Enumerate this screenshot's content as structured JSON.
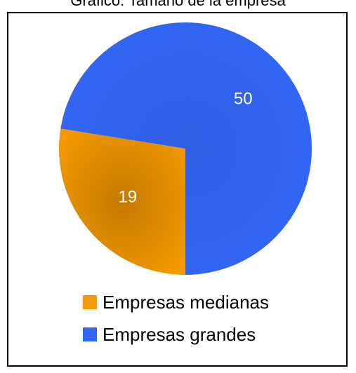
{
  "chart_data": {
    "type": "pie",
    "title": "Gráfico: Tamaño de la empresa",
    "slices": [
      {
        "name": "Empresas medianas",
        "value": 19,
        "color": "#F59A00"
      },
      {
        "name": "Empresas grandes",
        "value": 50,
        "color": "#3366F5"
      }
    ],
    "legend_position": "bottom"
  }
}
